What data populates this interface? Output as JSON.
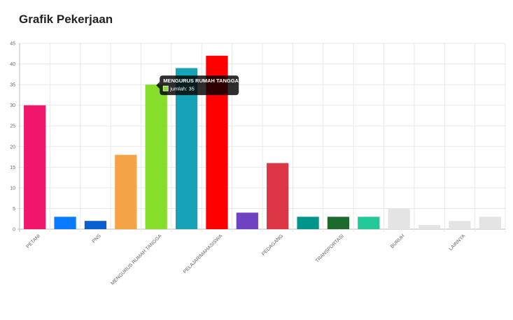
{
  "chart_data": {
    "type": "bar",
    "title": "Grafik Pekerjaan",
    "categories": [
      "PETANI",
      null,
      "PNS",
      null,
      "MENGURUS RUMAH TANGGA",
      null,
      "PELAJAR/MAHASISWA",
      null,
      "PEDAGANG",
      null,
      "TRANSPORTASI",
      null,
      "BURUH",
      null,
      "LAINNYA",
      null
    ],
    "series": [
      {
        "name": "jumlah",
        "values": [
          30,
          3,
          2,
          18,
          35,
          39,
          42,
          4,
          16,
          3,
          3,
          3,
          5,
          1,
          2,
          3
        ],
        "colors": [
          "#f0166b",
          "#0a7bff",
          "#0a5fd0",
          "#f4a347",
          "#86de2a",
          "#17a2b8",
          "#ff0000",
          "#6f42c1",
          "#dc3545",
          "#00958a",
          "#1d6a2e",
          "#22c896",
          "#e4e4e4",
          "#e4e4e4",
          "#e4e4e4",
          "#e4e4e4"
        ]
      }
    ],
    "ylim": [
      0,
      45
    ],
    "yticks": [
      0,
      5,
      10,
      15,
      20,
      25,
      30,
      35,
      40,
      45
    ],
    "grid": true,
    "tooltip": {
      "category_index": 4
    }
  }
}
